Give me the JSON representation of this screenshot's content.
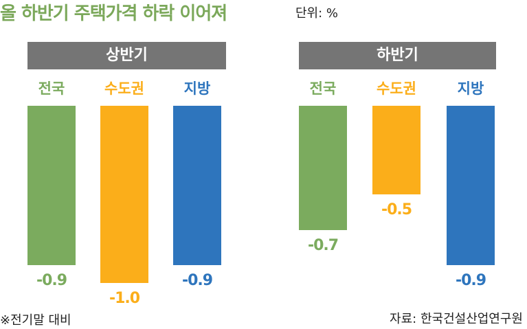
{
  "header": {
    "title": "올 하반기 주택가격 하락 이어져",
    "unit": "단위: %"
  },
  "footer": {
    "note": "※전기말 대비",
    "source": "자료: 한국건설산업연구원"
  },
  "colors": {
    "national": "#7bab5e",
    "capital": "#fbae1a",
    "regional": "#2e75bd",
    "panel_header": "#757575",
    "title": "#7ba85a"
  },
  "chart_data": [
    {
      "type": "bar",
      "title": "상반기",
      "categories": [
        "전국",
        "수도권",
        "지방"
      ],
      "values": [
        -0.9,
        -1.0,
        -0.9
      ],
      "value_labels": [
        "-0.9",
        "-1.0",
        "-0.9"
      ],
      "ylim": [
        -1.0,
        0
      ],
      "grid": false
    },
    {
      "type": "bar",
      "title": "하반기",
      "categories": [
        "전국",
        "수도권",
        "지방"
      ],
      "values": [
        -0.7,
        -0.5,
        -0.9
      ],
      "value_labels": [
        "-0.7",
        "-0.5",
        "-0.9"
      ],
      "ylim": [
        -1.0,
        0
      ],
      "grid": false
    }
  ]
}
